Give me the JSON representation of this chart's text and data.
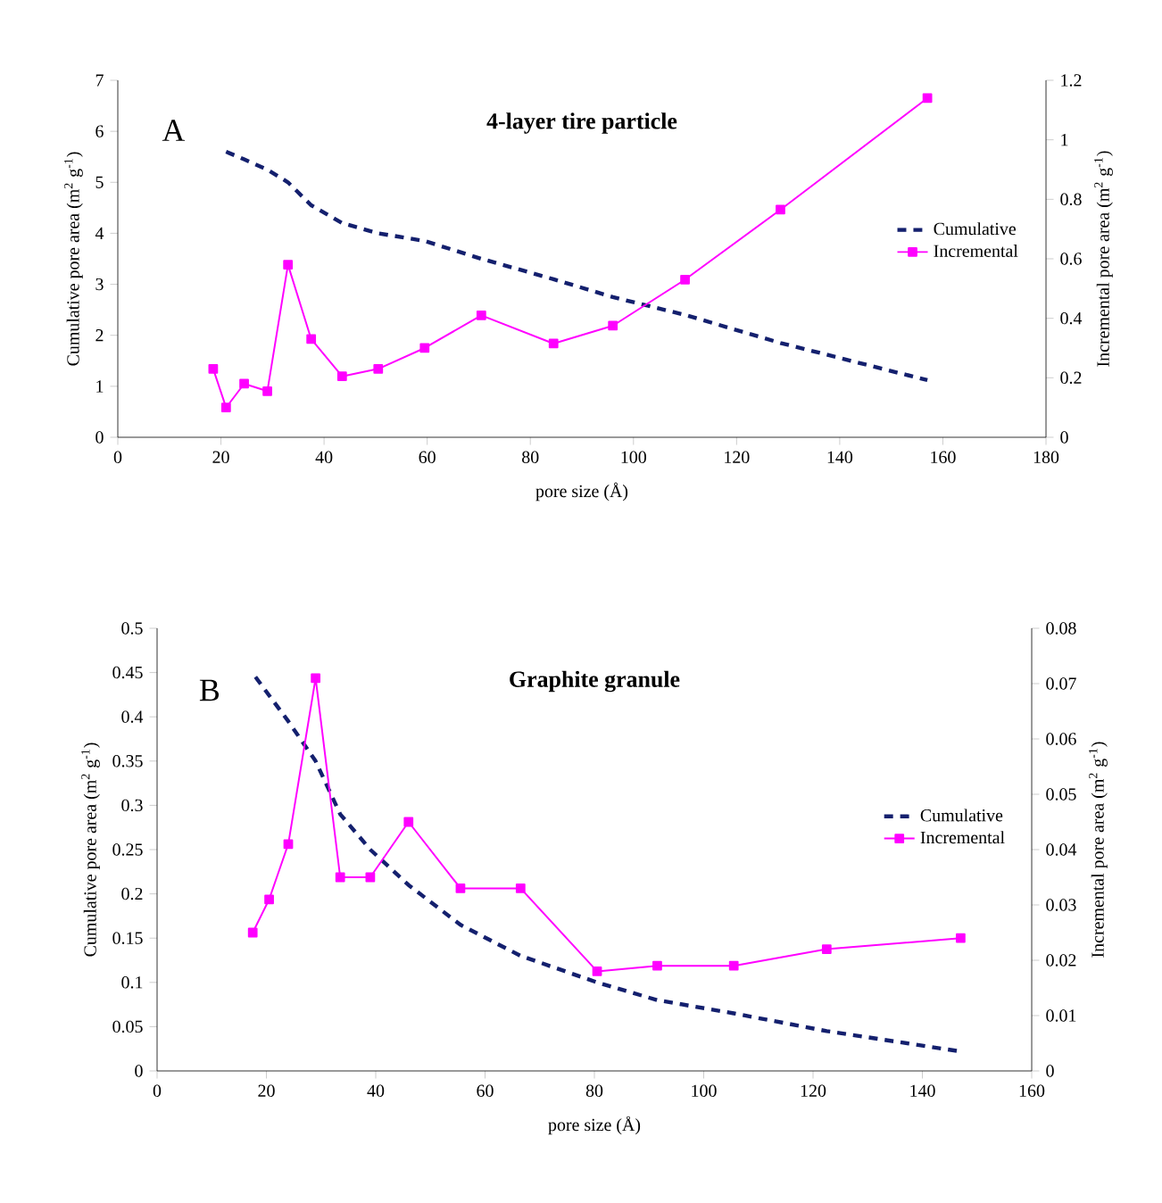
{
  "chart_data": [
    {
      "type": "line",
      "title": "4-layer tire particle",
      "annotations": [
        "A"
      ],
      "xlabel": "pore size (Å)",
      "ylabel": "Cumulative pore area (m$^{2}$ g$^{-1}$)",
      "y2label": "Incremental pore area (m$^{2}$ g$^{-1}$)",
      "xlim": [
        0,
        180
      ],
      "xticks": [
        0,
        20,
        40,
        60,
        80,
        100,
        120,
        140,
        160,
        180
      ],
      "ylim": [
        0,
        7
      ],
      "yticks": [
        0,
        1,
        2,
        3,
        4,
        5,
        6,
        7
      ],
      "y2lim": [
        0,
        1.2
      ],
      "y2ticks": [
        0,
        0.2,
        0.4,
        0.6,
        0.8,
        1,
        1.2
      ],
      "legend": "right",
      "series": [
        {
          "name": "Cumulative",
          "axis": "y",
          "color": "#14206e",
          "marker": "none",
          "line_style": "dashed",
          "x": [
            21,
            24.5,
            29,
            33,
            37.5,
            43.5,
            50.5,
            59.5,
            70.5,
            84.5,
            96,
            110,
            128.5,
            157
          ],
          "values": [
            5.6,
            5.45,
            5.25,
            5.0,
            4.55,
            4.2,
            4.0,
            3.85,
            3.5,
            3.1,
            2.75,
            2.4,
            1.85,
            1.12
          ]
        },
        {
          "name": "Incremental",
          "axis": "y2",
          "color": "#ff00ff",
          "marker": "square",
          "line_style": "solid",
          "x": [
            18.5,
            21,
            24.5,
            29,
            33,
            37.5,
            43.5,
            50.5,
            59.5,
            70.5,
            84.5,
            96,
            110,
            128.5,
            157
          ],
          "values": [
            0.23,
            0.1,
            0.18,
            0.155,
            0.58,
            0.33,
            0.205,
            0.23,
            0.3,
            0.41,
            0.315,
            0.375,
            0.53,
            0.765,
            1.14
          ]
        }
      ]
    },
    {
      "type": "line",
      "title": "Graphite granule",
      "annotations": [
        "B"
      ],
      "xlabel": "pore size (Å)",
      "ylabel": "Cumulative pore area (m$^{2}$ g$^{-1}$)",
      "y2label": "Incremental pore area (m$^{2}$ g$^{-1}$)",
      "xlim": [
        0,
        160
      ],
      "xticks": [
        0,
        20,
        40,
        60,
        80,
        100,
        120,
        140,
        160
      ],
      "ylim": [
        0,
        0.5
      ],
      "yticks": [
        0,
        0.05,
        0.1,
        0.15,
        0.2,
        0.25,
        0.3,
        0.35,
        0.4,
        0.45,
        0.5
      ],
      "y2lim": [
        0,
        0.08
      ],
      "y2ticks": [
        0,
        0.01,
        0.02,
        0.03,
        0.04,
        0.05,
        0.06,
        0.07,
        0.08
      ],
      "legend": "right",
      "series": [
        {
          "name": "Cumulative",
          "axis": "y",
          "color": "#14206e",
          "marker": "none",
          "line_style": "dashed",
          "x": [
            18,
            24,
            29,
            33.5,
            39,
            46,
            55.5,
            66.5,
            80.5,
            91.5,
            105.5,
            122.5,
            147
          ],
          "values": [
            0.445,
            0.395,
            0.35,
            0.29,
            0.25,
            0.21,
            0.165,
            0.13,
            0.1,
            0.08,
            0.065,
            0.045,
            0.022
          ]
        },
        {
          "name": "Incremental",
          "axis": "y2",
          "color": "#ff00ff",
          "marker": "square",
          "line_style": "solid",
          "x": [
            17.5,
            20.5,
            24,
            29,
            33.5,
            39,
            46,
            55.5,
            66.5,
            80.5,
            91.5,
            105.5,
            122.5,
            147
          ],
          "values": [
            0.025,
            0.031,
            0.041,
            0.071,
            0.035,
            0.035,
            0.045,
            0.033,
            0.033,
            0.018,
            0.019,
            0.019,
            0.022,
            0.024
          ]
        }
      ]
    }
  ]
}
